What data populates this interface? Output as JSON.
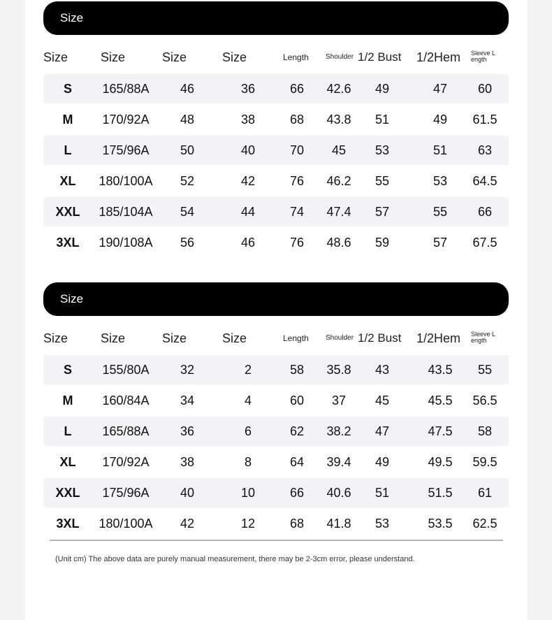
{
  "tables": [
    {
      "title": "Size",
      "headers": [
        "Size",
        "Size",
        "Size",
        "Size",
        "Length",
        "Shoulder",
        "1/2 Bust",
        "1/2Hem",
        "Sleeve Length"
      ],
      "rows": [
        [
          "S",
          "165/88A",
          "46",
          "36",
          "66",
          "42.6",
          "49",
          "47",
          "60"
        ],
        [
          "M",
          "170/92A",
          "48",
          "38",
          "68",
          "43.8",
          "51",
          "49",
          "61.5"
        ],
        [
          "L",
          "175/96A",
          "50",
          "40",
          "70",
          "45",
          "53",
          "51",
          "63"
        ],
        [
          "XL",
          "180/100A",
          "52",
          "42",
          "76",
          "46.2",
          "55",
          "53",
          "64.5"
        ],
        [
          "XXL",
          "185/104A",
          "54",
          "44",
          "74",
          "47.4",
          "57",
          "55",
          "66"
        ],
        [
          "3XL",
          "190/108A",
          "56",
          "46",
          "76",
          "48.6",
          "59",
          "57",
          "67.5"
        ]
      ]
    },
    {
      "title": "Size",
      "headers": [
        "Size",
        "Size",
        "Size",
        "Size",
        "Length",
        "Shoulder",
        "1/2 Bust",
        "1/2Hem",
        "Sleeve Length"
      ],
      "rows": [
        [
          "S",
          "155/80A",
          "32",
          "2",
          "58",
          "35.8",
          "43",
          "43.5",
          "55"
        ],
        [
          "M",
          "160/84A",
          "34",
          "4",
          "60",
          "37",
          "45",
          "45.5",
          "56.5"
        ],
        [
          "L",
          "165/88A",
          "36",
          "6",
          "62",
          "38.2",
          "47",
          "47.5",
          "58"
        ],
        [
          "XL",
          "170/92A",
          "38",
          "8",
          "64",
          "39.4",
          "49",
          "49.5",
          "59.5"
        ],
        [
          "XXL",
          "175/96A",
          "40",
          "10",
          "66",
          "40.6",
          "51",
          "51.5",
          "61"
        ],
        [
          "3XL",
          "180/100A",
          "42",
          "12",
          "68",
          "41.8",
          "53",
          "53.5",
          "62.5"
        ]
      ]
    }
  ],
  "note": "(Unit cm) The above data are purely manual measurement, there may be 2-3cm error, please understand."
}
